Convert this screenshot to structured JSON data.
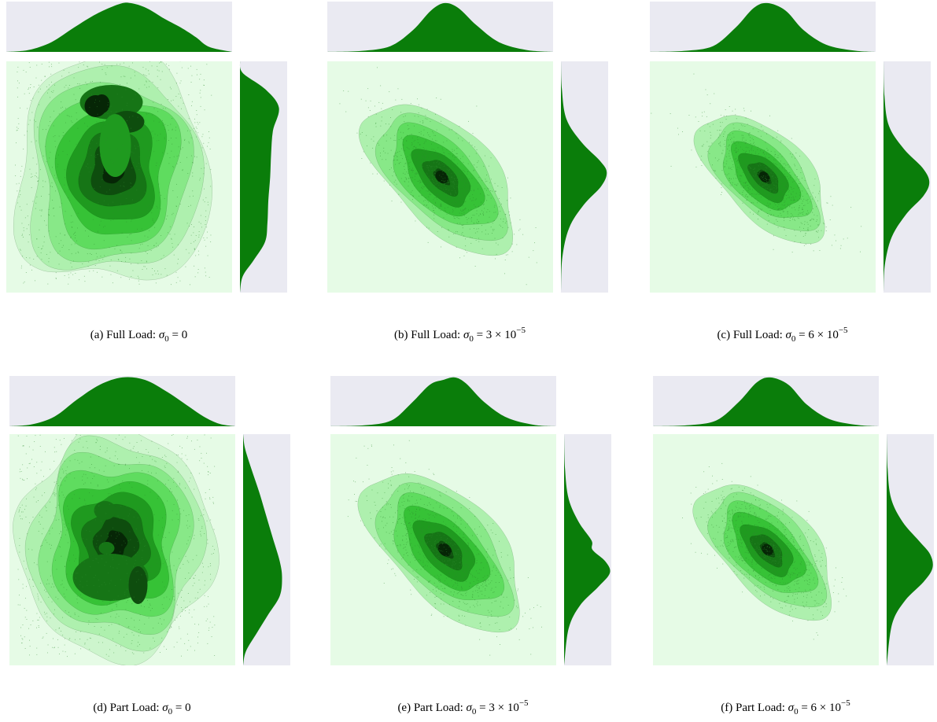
{
  "figure": {
    "colors": {
      "panel_bg": "#eaeaf2",
      "plot_bg": "#e6fbe6",
      "marginal_fill": "#0a7d0a",
      "contour_levels": [
        "#e6fbe6",
        "#cdf5cd",
        "#aef0ae",
        "#88e888",
        "#5fdc5f",
        "#36c236",
        "#1f9a1f",
        "#167516",
        "#0e4d0e",
        "#062606"
      ],
      "scatter": "#2e8b2e"
    }
  },
  "chart_data": [
    {
      "type": "jointplot-kde",
      "label": "(a)",
      "caption_prefix": "Full Load:",
      "caption_symbol": "σ",
      "caption_sub": "0",
      "caption_rhs": " = 0",
      "caption_exp": "",
      "shape": "blob",
      "top_marginal": [
        [
          0,
          0
        ],
        [
          0.1,
          0.04
        ],
        [
          0.2,
          0.2
        ],
        [
          0.3,
          0.5
        ],
        [
          0.4,
          0.78
        ],
        [
          0.5,
          0.98
        ],
        [
          0.55,
          1.0
        ],
        [
          0.62,
          0.9
        ],
        [
          0.7,
          0.68
        ],
        [
          0.78,
          0.48
        ],
        [
          0.84,
          0.3
        ],
        [
          0.9,
          0.1
        ],
        [
          1,
          0
        ]
      ],
      "right_marginal": [
        [
          0,
          0
        ],
        [
          0.05,
          0.06
        ],
        [
          0.12,
          0.55
        ],
        [
          0.2,
          0.85
        ],
        [
          0.3,
          0.72
        ],
        [
          0.4,
          0.68
        ],
        [
          0.5,
          0.66
        ],
        [
          0.6,
          0.62
        ],
        [
          0.7,
          0.6
        ],
        [
          0.78,
          0.55
        ],
        [
          0.86,
          0.3
        ],
        [
          0.93,
          0.06
        ],
        [
          1,
          0
        ]
      ]
    },
    {
      "type": "jointplot-kde",
      "label": "(b)",
      "caption_prefix": "Full Load:",
      "caption_symbol": "σ",
      "caption_sub": "0",
      "caption_rhs": " = 3 × 10",
      "caption_exp": "−5",
      "shape": "ellipse",
      "spread": 1.0,
      "top_marginal": [
        [
          0,
          0
        ],
        [
          0.15,
          0.02
        ],
        [
          0.28,
          0.12
        ],
        [
          0.38,
          0.45
        ],
        [
          0.46,
          0.85
        ],
        [
          0.52,
          1.0
        ],
        [
          0.58,
          0.9
        ],
        [
          0.66,
          0.55
        ],
        [
          0.76,
          0.2
        ],
        [
          0.88,
          0.04
        ],
        [
          1,
          0
        ]
      ],
      "right_marginal": [
        [
          0,
          0
        ],
        [
          0.12,
          0.02
        ],
        [
          0.25,
          0.12
        ],
        [
          0.35,
          0.45
        ],
        [
          0.43,
          0.85
        ],
        [
          0.48,
          1.0
        ],
        [
          0.54,
          0.88
        ],
        [
          0.62,
          0.5
        ],
        [
          0.72,
          0.18
        ],
        [
          0.85,
          0.03
        ],
        [
          1,
          0
        ]
      ]
    },
    {
      "type": "jointplot-kde",
      "label": "(c)",
      "caption_prefix": "Full Load:",
      "caption_symbol": "σ",
      "caption_sub": "0",
      "caption_rhs": " = 6 × 10",
      "caption_exp": "−5",
      "shape": "ellipse",
      "spread": 0.85,
      "top_marginal": [
        [
          0,
          0
        ],
        [
          0.15,
          0.02
        ],
        [
          0.28,
          0.12
        ],
        [
          0.38,
          0.5
        ],
        [
          0.46,
          0.9
        ],
        [
          0.52,
          1.0
        ],
        [
          0.6,
          0.85
        ],
        [
          0.68,
          0.45
        ],
        [
          0.78,
          0.15
        ],
        [
          0.9,
          0.03
        ],
        [
          1,
          0
        ]
      ],
      "right_marginal": [
        [
          0,
          0
        ],
        [
          0.15,
          0.02
        ],
        [
          0.28,
          0.12
        ],
        [
          0.38,
          0.45
        ],
        [
          0.46,
          0.85
        ],
        [
          0.52,
          1.0
        ],
        [
          0.58,
          0.88
        ],
        [
          0.66,
          0.5
        ],
        [
          0.76,
          0.18
        ],
        [
          0.88,
          0.03
        ],
        [
          1,
          0
        ]
      ]
    },
    {
      "type": "jointplot-kde",
      "label": "(d)",
      "caption_prefix": "Part Load:",
      "caption_symbol": "σ",
      "caption_sub": "0",
      "caption_rhs": " = 0",
      "caption_exp": "",
      "shape": "blob2",
      "top_marginal": [
        [
          0,
          0
        ],
        [
          0.1,
          0.04
        ],
        [
          0.2,
          0.2
        ],
        [
          0.3,
          0.55
        ],
        [
          0.4,
          0.85
        ],
        [
          0.5,
          1.0
        ],
        [
          0.6,
          0.95
        ],
        [
          0.7,
          0.7
        ],
        [
          0.78,
          0.45
        ],
        [
          0.86,
          0.2
        ],
        [
          0.93,
          0.05
        ],
        [
          1,
          0
        ]
      ],
      "right_marginal": [
        [
          0,
          0
        ],
        [
          0.06,
          0.04
        ],
        [
          0.15,
          0.18
        ],
        [
          0.25,
          0.35
        ],
        [
          0.35,
          0.5
        ],
        [
          0.45,
          0.65
        ],
        [
          0.55,
          0.8
        ],
        [
          0.62,
          0.85
        ],
        [
          0.7,
          0.8
        ],
        [
          0.78,
          0.55
        ],
        [
          0.86,
          0.3
        ],
        [
          0.94,
          0.06
        ],
        [
          1,
          0
        ]
      ]
    },
    {
      "type": "jointplot-kde",
      "label": "(e)",
      "caption_prefix": "Part Load:",
      "caption_symbol": "σ",
      "caption_sub": "0",
      "caption_rhs": " = 3 × 10",
      "caption_exp": "−5",
      "shape": "ellipse",
      "spread": 1.05,
      "top_marginal": [
        [
          0,
          0
        ],
        [
          0.15,
          0.02
        ],
        [
          0.27,
          0.12
        ],
        [
          0.36,
          0.48
        ],
        [
          0.44,
          0.85
        ],
        [
          0.5,
          0.95
        ],
        [
          0.55,
          1.0
        ],
        [
          0.6,
          0.88
        ],
        [
          0.68,
          0.5
        ],
        [
          0.78,
          0.18
        ],
        [
          0.9,
          0.03
        ],
        [
          1,
          0
        ]
      ],
      "right_marginal": [
        [
          0,
          0
        ],
        [
          0.15,
          0.02
        ],
        [
          0.28,
          0.1
        ],
        [
          0.38,
          0.32
        ],
        [
          0.46,
          0.6
        ],
        [
          0.5,
          0.62
        ],
        [
          0.55,
          0.9
        ],
        [
          0.6,
          1.0
        ],
        [
          0.66,
          0.75
        ],
        [
          0.74,
          0.35
        ],
        [
          0.84,
          0.1
        ],
        [
          1,
          0
        ]
      ]
    },
    {
      "type": "jointplot-kde",
      "label": "(f)",
      "caption_prefix": "Part Load:",
      "caption_symbol": "σ",
      "caption_sub": "0",
      "caption_rhs": " = 6 × 10",
      "caption_exp": "−5",
      "shape": "ellipse",
      "spread": 0.9,
      "top_marginal": [
        [
          0,
          0
        ],
        [
          0.15,
          0.02
        ],
        [
          0.28,
          0.12
        ],
        [
          0.38,
          0.5
        ],
        [
          0.46,
          0.9
        ],
        [
          0.52,
          1.0
        ],
        [
          0.6,
          0.85
        ],
        [
          0.68,
          0.45
        ],
        [
          0.78,
          0.15
        ],
        [
          0.9,
          0.03
        ],
        [
          1,
          0
        ]
      ],
      "right_marginal": [
        [
          0,
          0
        ],
        [
          0.15,
          0.02
        ],
        [
          0.28,
          0.1
        ],
        [
          0.38,
          0.35
        ],
        [
          0.46,
          0.7
        ],
        [
          0.52,
          0.95
        ],
        [
          0.58,
          1.0
        ],
        [
          0.64,
          0.8
        ],
        [
          0.72,
          0.4
        ],
        [
          0.82,
          0.12
        ],
        [
          1,
          0
        ]
      ]
    }
  ]
}
